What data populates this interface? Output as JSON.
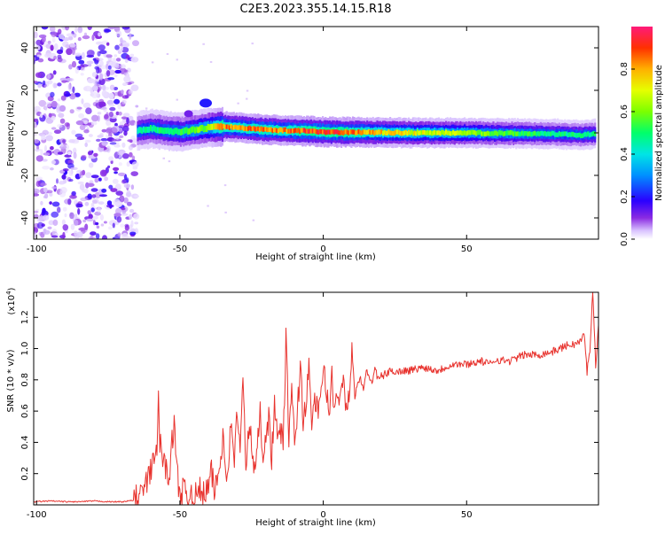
{
  "title": "C2E3.2023.355.14.15.R18",
  "colors": {
    "snr_line": "#e8332e",
    "colormap": [
      "#ffffff",
      "#d9c3ff",
      "#8a2be2",
      "#2a00ff",
      "#0090ff",
      "#00e5e5",
      "#00ff6a",
      "#7cff00",
      "#e6ff00",
      "#ffb000",
      "#ff3000",
      "#ff1a7a"
    ]
  },
  "chart_data": [
    {
      "type": "heatmap",
      "xlabel": "Height of straight line (km)",
      "ylabel": "Frequency (Hz)",
      "xlim": [
        -101,
        96
      ],
      "ylim": [
        -50,
        50
      ],
      "xticks": [
        -100,
        -50,
        0,
        50
      ],
      "yticks": [
        -40,
        -20,
        0,
        20,
        40
      ],
      "grid": false,
      "noise_region": {
        "x": [
          -101,
          -65
        ],
        "y": [
          -50,
          50
        ]
      },
      "signal_track": {
        "x": [
          -65,
          -60,
          -55,
          -50,
          -45,
          -40,
          -35,
          -30,
          -25,
          -20,
          -15,
          -10,
          -5,
          0,
          5,
          10,
          20,
          30,
          40,
          50,
          60,
          70,
          80,
          90,
          95
        ],
        "center_freq_hz": [
          1,
          2,
          1,
          0.5,
          1.5,
          2.5,
          3,
          2.5,
          2,
          1.5,
          1.2,
          1,
          0.8,
          0.5,
          0.3,
          0.3,
          0.2,
          0,
          0,
          0,
          -0.2,
          -0.3,
          -0.5,
          -1,
          -0.5
        ],
        "peak_amplitude": [
          0.45,
          0.5,
          0.5,
          0.55,
          0.6,
          0.65,
          0.9,
          0.85,
          0.9,
          0.9,
          0.85,
          0.9,
          0.95,
          0.95,
          0.95,
          0.9,
          0.8,
          0.75,
          0.7,
          0.65,
          0.6,
          0.55,
          0.5,
          0.5,
          0.5
        ]
      },
      "colorbar": {
        "label": "Normalized spectral amplitude",
        "range": [
          0,
          1
        ],
        "ticks": [
          "0.0",
          "0.2",
          "0.4",
          "0.6",
          "0.8"
        ]
      }
    },
    {
      "type": "line",
      "xlabel": "Height of straight line (km)",
      "ylabel": "SNR (10 * v/v)",
      "y_multiplier": "(x10",
      "y_multiplier_exp": "4",
      "y_multiplier_close": ")",
      "xlim": [
        -101,
        96
      ],
      "ylim": [
        0,
        1.36
      ],
      "xticks": [
        -100,
        -50,
        0,
        50
      ],
      "yticks": [
        0.2,
        0.4,
        0.6,
        0.8,
        1.0,
        1.2
      ],
      "ytick_labels": [
        "0.2",
        "0.4",
        "0.6",
        "0.8",
        "1.0",
        "1.2"
      ],
      "grid": false,
      "series": [
        {
          "x": [
            -101,
            -95,
            -90,
            -85,
            -80,
            -75,
            -70,
            -66,
            -64,
            -62,
            -60,
            -59,
            -58,
            -57.5,
            -57,
            -56,
            -55,
            -54,
            -53,
            -52,
            -51,
            -50,
            -49,
            -48,
            -47,
            -46,
            -45,
            -44,
            -43,
            -42,
            -41,
            -40,
            -39,
            -38,
            -37,
            -36,
            -35,
            -34,
            -33,
            -32,
            -31,
            -30,
            -29,
            -28,
            -27,
            -26,
            -25,
            -24,
            -23,
            -22,
            -21,
            -20,
            -19,
            -18,
            -17,
            -16,
            -15,
            -14,
            -13,
            -12,
            -11,
            -10,
            -9,
            -8,
            -7,
            -6,
            -5,
            -4,
            -3,
            -2,
            -1,
            0,
            1,
            2,
            3,
            4,
            5,
            6,
            7,
            8,
            9,
            10,
            11,
            12,
            13,
            14,
            15,
            16,
            17,
            18,
            19,
            20,
            22,
            24,
            26,
            28,
            30,
            35,
            40,
            45,
            50,
            55,
            58,
            60,
            65,
            70,
            75,
            80,
            85,
            88,
            90,
            91,
            92,
            93,
            94,
            95,
            96
          ],
          "y": [
            0.02,
            0.025,
            0.02,
            0.02,
            0.025,
            0.02,
            0.02,
            0.03,
            0.06,
            0.12,
            0.22,
            0.35,
            0.28,
            0.72,
            0.4,
            0.3,
            0.25,
            0.15,
            0.35,
            0.52,
            0.2,
            0.08,
            0.1,
            0.06,
            0.04,
            0.1,
            0.06,
            0.05,
            0.1,
            0.06,
            0.08,
            0.12,
            0.2,
            0.1,
            0.15,
            0.25,
            0.48,
            0.2,
            0.3,
            0.55,
            0.3,
            0.6,
            0.35,
            0.78,
            0.25,
            0.5,
            0.4,
            0.2,
            0.35,
            0.6,
            0.3,
            0.48,
            0.55,
            0.3,
            0.65,
            0.4,
            0.52,
            0.35,
            1.06,
            0.45,
            0.7,
            0.4,
            0.6,
            0.9,
            0.55,
            0.68,
            0.85,
            0.5,
            0.7,
            0.6,
            0.62,
            0.92,
            0.7,
            0.62,
            0.8,
            0.55,
            0.75,
            0.66,
            0.9,
            0.6,
            0.72,
            1.02,
            0.7,
            0.78,
            0.8,
            0.75,
            0.85,
            0.82,
            0.78,
            0.88,
            0.8,
            0.82,
            0.84,
            0.86,
            0.85,
            0.86,
            0.86,
            0.88,
            0.86,
            0.9,
            0.9,
            0.92,
            0.9,
            0.93,
            0.92,
            0.96,
            0.96,
            0.98,
            1.02,
            1.03,
            1.05,
            1.1,
            0.85,
            1.0,
            1.36,
            0.9,
            1.15
          ]
        }
      ]
    }
  ]
}
